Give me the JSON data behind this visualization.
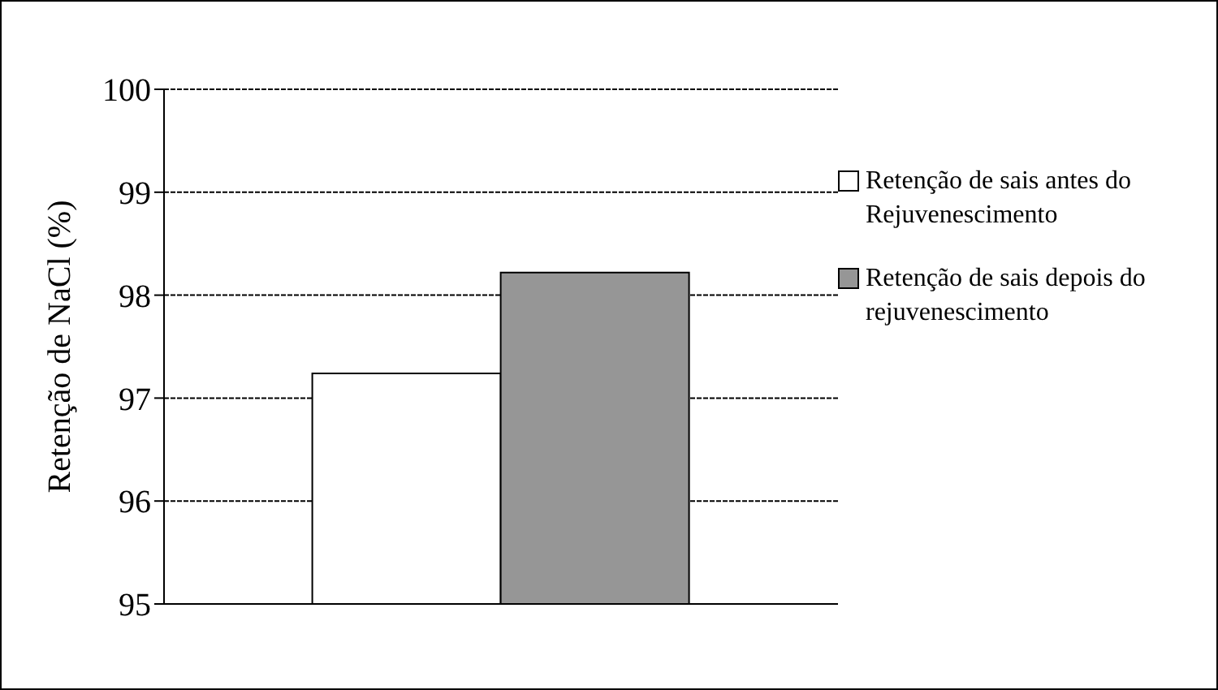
{
  "chart_data": {
    "type": "bar",
    "ylabel": "Retenção de NaCl (%)",
    "categories": [
      null
    ],
    "series": [
      {
        "name": "Retenção de sais antes do Rejuvenescimento",
        "color": "#ffffff",
        "values": [
          97.24
        ]
      },
      {
        "name": "Retenção de sais depois do rejuvenescimento",
        "color": "#969696",
        "values": [
          98.22
        ]
      }
    ],
    "ylim": [
      95,
      100
    ],
    "yticks": [
      95,
      96,
      97,
      98,
      99,
      100
    ],
    "grid": "y",
    "legend": "right"
  }
}
